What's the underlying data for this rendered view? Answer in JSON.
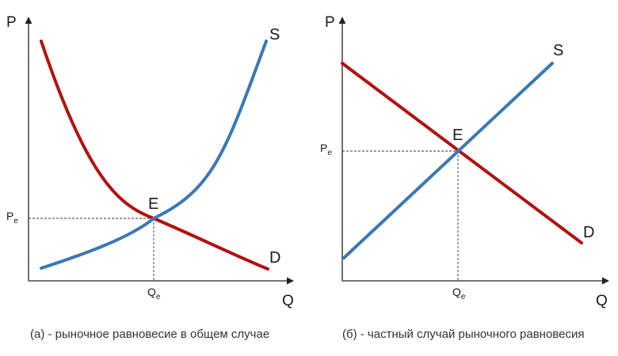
{
  "colors": {
    "demand": "#b40f0f",
    "supply": "#3a78b4",
    "axis": "#222222"
  },
  "panels": [
    {
      "y_axis_label": "P",
      "x_axis_label": "Q",
      "supply_label": "S",
      "demand_label": "D",
      "equilibrium_label": "E",
      "price_tick": {
        "main": "P",
        "sub": "e"
      },
      "quantity_tick": {
        "main": "Q",
        "sub": "e"
      },
      "caption": "(а) - рыночное равновесие в общем случае"
    },
    {
      "y_axis_label": "P",
      "x_axis_label": "Q",
      "supply_label": "S",
      "demand_label": "D",
      "equilibrium_label": "E",
      "price_tick": {
        "main": "P",
        "sub": "e"
      },
      "quantity_tick": {
        "main": "Q",
        "sub": "e"
      },
      "caption": "(б) - частный случай рыночного равновесия"
    }
  ]
}
